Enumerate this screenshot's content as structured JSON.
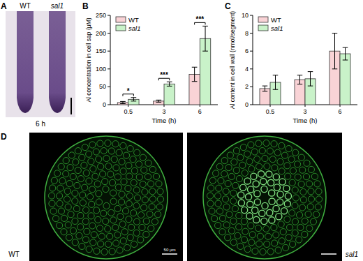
{
  "chart_data": [
    {
      "type": "bar",
      "title": "B",
      "x_label": "Time (h)",
      "y_label": "Al concentration in cell sap (μM)",
      "categories": [
        "0.5",
        "3",
        "6"
      ],
      "series": [
        {
          "name": "WT",
          "color": "#f9d3d6",
          "values": [
            6,
            10,
            85
          ],
          "errors": [
            3,
            3,
            20
          ]
        },
        {
          "name": "sal1",
          "color": "#c9f2c9",
          "values": [
            15,
            58,
            185
          ],
          "errors": [
            5,
            6,
            35
          ]
        }
      ],
      "ylim": [
        0,
        250
      ],
      "yticks": [
        0,
        50,
        100,
        150,
        200,
        250
      ],
      "legend": "top-left",
      "annotations": [
        "*",
        "***",
        "***"
      ]
    },
    {
      "type": "bar",
      "title": "C",
      "x_label": "Time (h)",
      "y_label": "Al content in cell wall (nmol/segment)",
      "categories": [
        "0.5",
        "3",
        "6"
      ],
      "series": [
        {
          "name": "WT",
          "color": "#f9d3d6",
          "values": [
            1.8,
            2.8,
            6.0
          ],
          "errors": [
            0.3,
            0.5,
            2.0
          ]
        },
        {
          "name": "sal1",
          "color": "#c9f2c9",
          "values": [
            2.5,
            2.9,
            5.7
          ],
          "errors": [
            0.8,
            0.8,
            0.7
          ]
        }
      ],
      "ylim": [
        0,
        10
      ],
      "yticks": [
        0,
        2,
        4,
        6,
        8,
        10
      ],
      "legend": "top-left"
    }
  ],
  "panels": [
    {
      "letter": "A",
      "labels": [
        "WT",
        "sal1"
      ],
      "caption": "6 h"
    },
    {
      "letter": "D",
      "labels": [
        "WT",
        "sal1"
      ],
      "scale_bar": "50 μm"
    }
  ]
}
